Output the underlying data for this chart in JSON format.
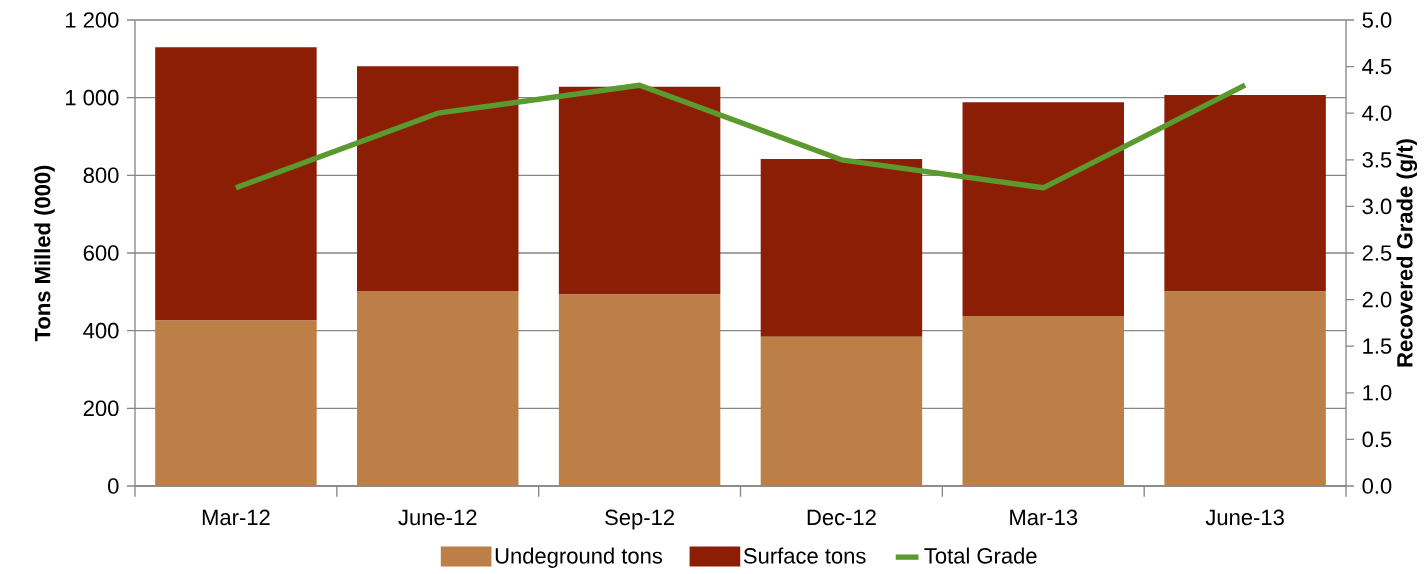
{
  "chart_data": {
    "type": "bar",
    "stacked": true,
    "ylabel": "Tons Milled (000)",
    "y2label": "Recovered Grade (g/t)",
    "categories": [
      "Mar-12",
      "June-12",
      "Sep-12",
      "Dec-12",
      "Mar-13",
      "June-13"
    ],
    "series": [
      {
        "name": "Undeground tons",
        "color": "#bc7f47",
        "values": [
          426,
          502,
          493,
          384,
          438,
          501
        ]
      },
      {
        "name": "Surface tons",
        "color": "#8b1e04",
        "values": [
          704,
          579,
          535,
          458,
          550,
          506
        ]
      },
      {
        "name": "Total Grade",
        "type": "line",
        "axis": "y2",
        "color": "#5a9a2e",
        "values": [
          3.2,
          4.0,
          4.3,
          3.5,
          3.2,
          4.3
        ]
      }
    ],
    "ylim": [
      0,
      1200
    ],
    "yticks": [
      0,
      200,
      400,
      600,
      800,
      {
        "value": 1000,
        "label": "1 000"
      },
      {
        "value": 1200,
        "label": "1 200"
      }
    ],
    "y2lim": [
      0,
      5
    ],
    "y2ticks": [
      {
        "value": 0,
        "label": "0.0"
      },
      0.5,
      {
        "value": 1,
        "label": "1.0"
      },
      1.5,
      {
        "value": 2,
        "label": "2.0"
      },
      2.5,
      {
        "value": 3,
        "label": "3.0"
      },
      3.5,
      {
        "value": 4,
        "label": "4.0"
      },
      4.5,
      {
        "value": 5,
        "label": "5.0"
      }
    ],
    "grid": "y",
    "legend": "bottom"
  }
}
